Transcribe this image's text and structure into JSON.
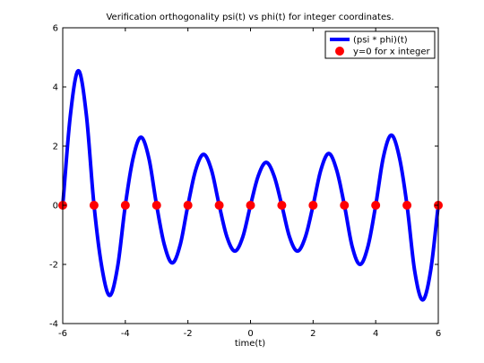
{
  "chart_data": {
    "type": "line",
    "title": "Verification orthogonality psi(t) vs phi(t) for integer coordinates.",
    "xlabel": "time(t)",
    "ylabel": "",
    "xlim": [
      -6,
      6
    ],
    "ylim": [
      -4,
      6
    ],
    "x_ticks": [
      -6,
      -4,
      -2,
      0,
      2,
      4,
      6
    ],
    "y_ticks": [
      -4,
      -2,
      0,
      2,
      4,
      6
    ],
    "x_tick_labels": [
      "-6",
      "-4",
      "-2",
      "0",
      "2",
      "4",
      "6"
    ],
    "y_tick_labels": [
      "-4",
      "-2",
      "0",
      "2",
      "4",
      "6"
    ],
    "grid": false,
    "legend_position": "top-right",
    "series": [
      {
        "name": "(psi * phi)(t)",
        "style": "line",
        "color": "#0000ff",
        "x": [
          -6,
          -5.75,
          -5.5,
          -5.25,
          -5,
          -4.75,
          -4.5,
          -4.25,
          -4,
          -3.75,
          -3.5,
          -3.25,
          -3,
          -2.75,
          -2.5,
          -2.25,
          -2,
          -1.75,
          -1.5,
          -1.25,
          -1,
          -0.75,
          -0.5,
          -0.25,
          0,
          0.25,
          0.5,
          0.75,
          1,
          1.25,
          1.5,
          1.75,
          2,
          2.25,
          2.5,
          2.75,
          3,
          3.25,
          3.5,
          3.75,
          4,
          4.25,
          4.5,
          4.75,
          5,
          5.25,
          5.5,
          5.75,
          6
        ],
        "values": [
          0,
          3.1,
          4.55,
          3.1,
          0,
          -2.1,
          -3.05,
          -2.1,
          0,
          1.6,
          2.3,
          1.6,
          0,
          -1.35,
          -1.95,
          -1.35,
          0,
          1.2,
          1.72,
          1.2,
          0,
          -1.08,
          -1.55,
          -1.08,
          0,
          1.0,
          1.45,
          1.0,
          0,
          -1.08,
          -1.55,
          -1.08,
          0,
          1.2,
          1.75,
          1.2,
          0,
          -1.4,
          -2.0,
          -1.4,
          0,
          1.65,
          2.37,
          1.65,
          0,
          -2.25,
          -3.2,
          -2.25,
          0
        ]
      },
      {
        "name": "y=0 for x integer",
        "style": "markers",
        "color": "#ff0000",
        "x": [
          -6,
          -5,
          -4,
          -3,
          -2,
          -1,
          0,
          1,
          2,
          3,
          4,
          5,
          6
        ],
        "values": [
          0,
          0,
          0,
          0,
          0,
          0,
          0,
          0,
          0,
          0,
          0,
          0,
          0
        ]
      }
    ]
  }
}
